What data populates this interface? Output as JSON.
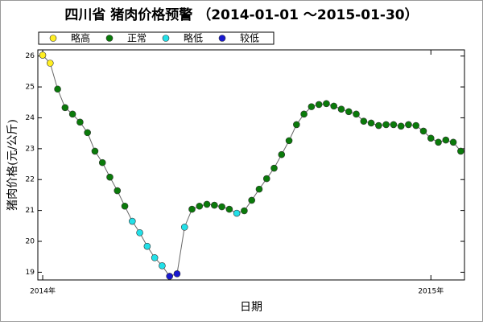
{
  "chart_data": {
    "type": "line",
    "title": "四川省 猪肉价格预警 （2014-01-01 ～2015-01-30）",
    "x_label": "日期",
    "y_label": "猪肉价格(元/公斤)",
    "legend": [
      {
        "name": "略高",
        "color": "#ffee22"
      },
      {
        "name": "正常",
        "color": "#0a7a0a"
      },
      {
        "name": "略低",
        "color": "#22e0e8"
      },
      {
        "name": "较低",
        "color": "#1a1ad0"
      }
    ],
    "x": [
      0,
      1,
      2,
      3,
      4,
      5,
      6,
      7,
      8,
      9,
      10,
      11,
      12,
      13,
      14,
      15,
      16,
      17,
      18,
      19,
      20,
      21,
      22,
      23,
      24,
      25,
      26,
      27,
      28,
      29,
      30,
      31,
      32,
      33,
      34,
      35,
      36,
      37,
      38,
      39,
      40,
      41,
      42,
      43,
      44,
      45,
      46,
      47,
      48,
      49,
      50,
      51,
      52,
      53,
      54,
      55,
      56
    ],
    "values": [
      26.03,
      25.77,
      24.93,
      24.33,
      24.12,
      23.86,
      23.52,
      22.92,
      22.55,
      22.08,
      21.64,
      21.14,
      20.65,
      20.28,
      19.84,
      19.47,
      19.21,
      18.87,
      18.95,
      20.46,
      21.04,
      21.14,
      21.2,
      21.17,
      21.12,
      21.04,
      20.91,
      20.99,
      21.33,
      21.69,
      22.03,
      22.37,
      22.81,
      23.26,
      23.78,
      24.12,
      24.36,
      24.43,
      24.46,
      24.38,
      24.28,
      24.2,
      24.12,
      23.89,
      23.83,
      23.75,
      23.78,
      23.78,
      23.73,
      23.78,
      23.75,
      23.57,
      23.34,
      23.21,
      23.28,
      23.21,
      22.92
    ],
    "point_colors": [
      "#ffee22",
      "#ffee22",
      "#0a7a0a",
      "#0a7a0a",
      "#0a7a0a",
      "#0a7a0a",
      "#0a7a0a",
      "#0a7a0a",
      "#0a7a0a",
      "#0a7a0a",
      "#0a7a0a",
      "#0a7a0a",
      "#22e0e8",
      "#22e0e8",
      "#22e0e8",
      "#22e0e8",
      "#22e0e8",
      "#1a1ad0",
      "#1a1ad0",
      "#22e0e8",
      "#0a7a0a",
      "#0a7a0a",
      "#0a7a0a",
      "#0a7a0a",
      "#0a7a0a",
      "#0a7a0a",
      "#22e0e8",
      "#0a7a0a",
      "#0a7a0a",
      "#0a7a0a",
      "#0a7a0a",
      "#0a7a0a",
      "#0a7a0a",
      "#0a7a0a",
      "#0a7a0a",
      "#0a7a0a",
      "#0a7a0a",
      "#0a7a0a",
      "#0a7a0a",
      "#0a7a0a",
      "#0a7a0a",
      "#0a7a0a",
      "#0a7a0a",
      "#0a7a0a",
      "#0a7a0a",
      "#0a7a0a",
      "#0a7a0a",
      "#0a7a0a",
      "#0a7a0a",
      "#0a7a0a",
      "#0a7a0a",
      "#0a7a0a",
      "#0a7a0a",
      "#0a7a0a",
      "#0a7a0a",
      "#0a7a0a",
      "#0a7a0a"
    ],
    "line_color": "#666666",
    "xlim": [
      -0.65,
      56.5
    ],
    "xticks": [
      {
        "value": 0,
        "label": "2014年"
      },
      {
        "value": 52,
        "label": "2015年"
      }
    ],
    "ylim": [
      18.75,
      26.2
    ],
    "yticks": [
      19,
      20,
      21,
      22,
      23,
      24,
      25,
      26
    ]
  }
}
